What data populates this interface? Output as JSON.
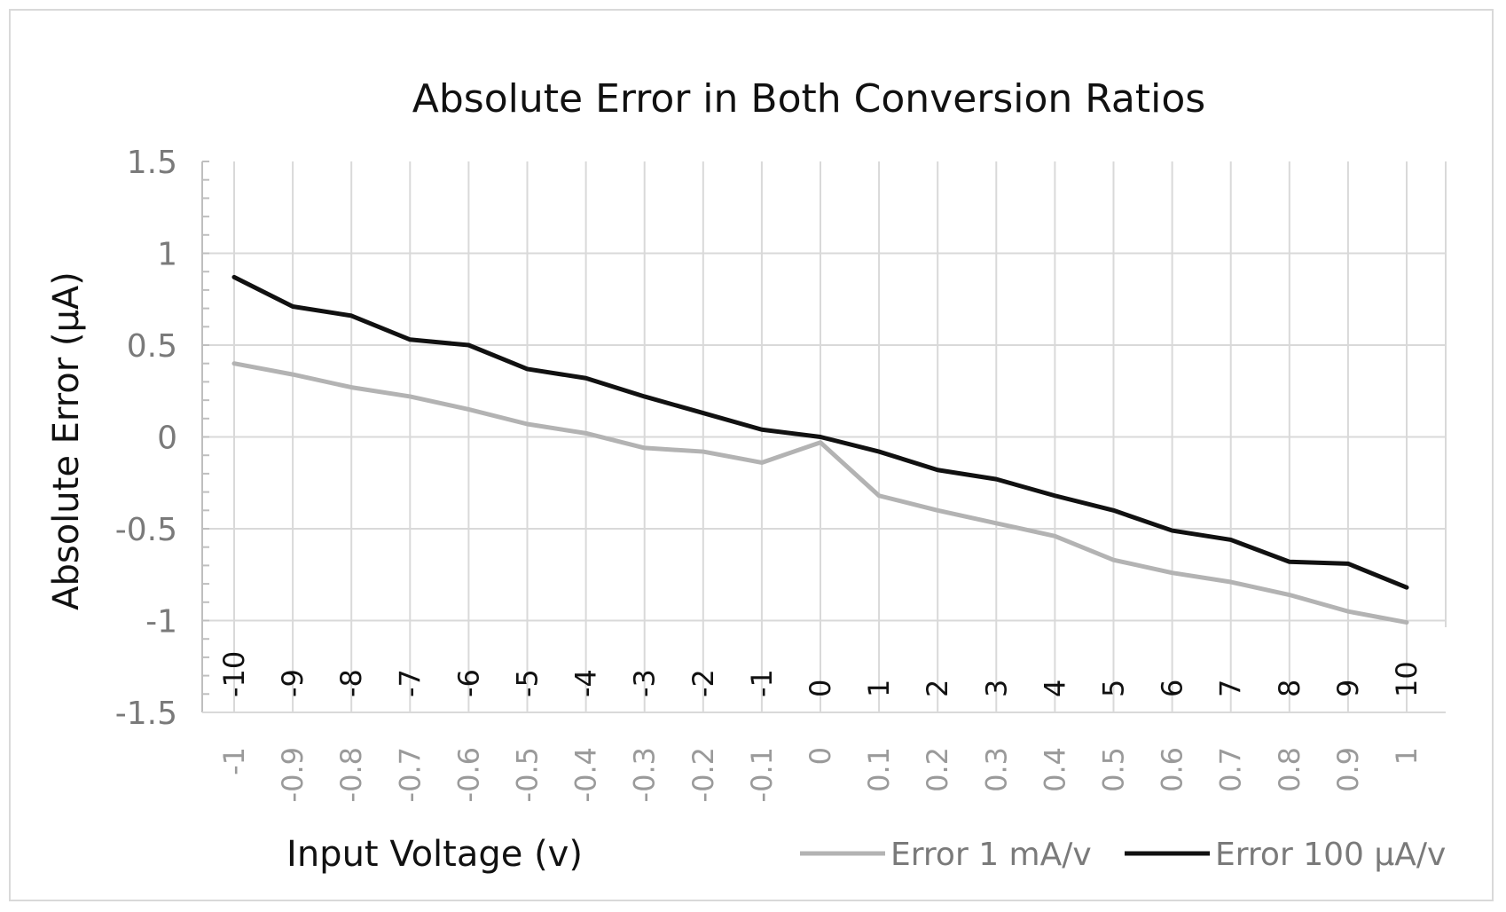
{
  "chart_data": {
    "type": "line",
    "title": "Absolute Error in Both Conversion Ratios",
    "xlabel": "Input Voltage (v)",
    "ylabel": "Absolute Error (μA)",
    "ylim": [
      -1.5,
      1.5
    ],
    "yticks": [
      "1.5",
      "1",
      "0.5",
      "0",
      "-0.5",
      "-1",
      "-1.5"
    ],
    "x": [
      -10,
      -9,
      -8,
      -7,
      -6,
      -5,
      -4,
      -3,
      -2,
      -1,
      0,
      1,
      2,
      3,
      4,
      5,
      6,
      7,
      8,
      9,
      10
    ],
    "x_tick_labels": [
      "-10",
      "-9",
      "-8",
      "-7",
      "-6",
      "-5",
      "-4",
      "-3",
      "-2",
      "-1",
      "0",
      "1",
      "2",
      "3",
      "4",
      "5",
      "6",
      "7",
      "8",
      "9",
      "10"
    ],
    "x_tick_labels_secondary": [
      "-1",
      "-0.9",
      "-0.8",
      "-0.7",
      "-0.6",
      "-0.5",
      "-0.4",
      "-0.3",
      "-0.2",
      "-0.1",
      "0",
      "0.1",
      "0.2",
      "0.3",
      "0.4",
      "0.5",
      "0.6",
      "0.7",
      "0.8",
      "0.9",
      "1"
    ],
    "grid": true,
    "legend_position": "bottom-right",
    "series": [
      {
        "name": "Error 1 mA/v",
        "color": "#b3b3b3",
        "values": [
          0.4,
          0.34,
          0.27,
          0.22,
          0.15,
          0.07,
          0.02,
          -0.06,
          -0.08,
          -0.14,
          -0.03,
          -0.32,
          -0.4,
          -0.47,
          -0.54,
          -0.67,
          -0.74,
          -0.79,
          -0.86,
          -0.95,
          -1.01
        ]
      },
      {
        "name": "Error 100 μA/v",
        "color": "#111111",
        "values": [
          0.87,
          0.71,
          0.66,
          0.53,
          0.5,
          0.37,
          0.32,
          0.22,
          0.13,
          0.04,
          0.0,
          -0.08,
          -0.18,
          -0.23,
          -0.32,
          -0.4,
          -0.51,
          -0.56,
          -0.68,
          -0.69,
          -0.82
        ]
      }
    ]
  }
}
